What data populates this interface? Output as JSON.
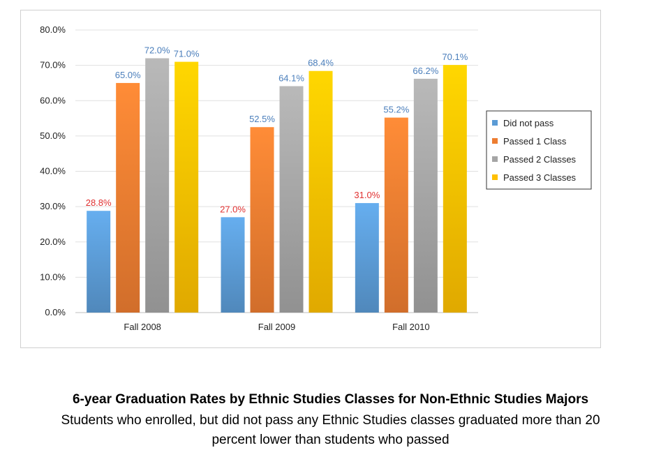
{
  "chart_data": {
    "type": "bar",
    "categories": [
      "Fall 2008",
      "Fall 2009",
      "Fall 2010"
    ],
    "series": [
      {
        "name": "Did not pass",
        "values": [
          28.8,
          27.0,
          31.0
        ],
        "color": "#5B9BD5",
        "label_color": "#E03030"
      },
      {
        "name": "Passed 1 Class",
        "values": [
          65.0,
          52.5,
          55.2
        ],
        "color": "#ED7D31",
        "label_color": "#4A7EBB"
      },
      {
        "name": "Passed 2 Classes",
        "values": [
          72.0,
          64.1,
          66.2
        ],
        "color": "#A5A5A5",
        "label_color": "#4A7EBB"
      },
      {
        "name": "Passed 3 Classes",
        "values": [
          71.0,
          68.4,
          70.1
        ],
        "color": "#FFC000",
        "label_color": "#4A7EBB"
      }
    ],
    "ylim": [
      0,
      80
    ],
    "yticks": [
      "0.0%",
      "10.0%",
      "20.0%",
      "30.0%",
      "40.0%",
      "50.0%",
      "60.0%",
      "70.0%",
      "80.0%"
    ],
    "value_suffix": "%",
    "grid": true,
    "legend_position": "right"
  },
  "caption": {
    "title": "6-year Graduation Rates by Ethnic Studies Classes for Non-Ethnic Studies Majors",
    "line1": "Students who enrolled, but did not pass any Ethnic Studies classes graduated more than 20",
    "line2": "percent lower than students who passed"
  }
}
